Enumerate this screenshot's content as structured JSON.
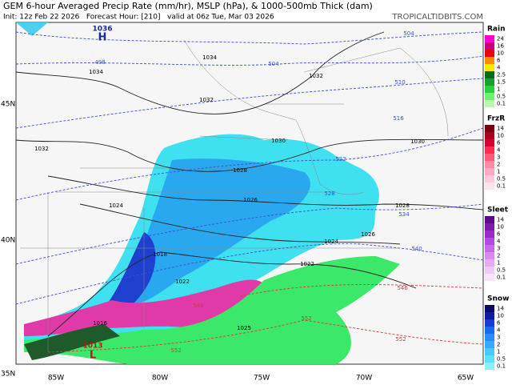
{
  "header": {
    "title": "GEM 6-hour Averaged Precip Rate (mm/hr), MSLP (hPa), & 1000-500mb Thick (dam)",
    "subtitle": "Init: 12z Feb 22 2026   Forecast Hour: [210]   valid at 06z Tue, Mar 03 2026",
    "credit": "TROPICALTIDBITS.COM"
  },
  "map": {
    "lat_labels": [
      "45N",
      "40N",
      "35N"
    ],
    "lon_labels": [
      "85W",
      "80W",
      "75W",
      "70W",
      "65W"
    ],
    "high": {
      "value": "1036",
      "symbol": "H"
    },
    "low": {
      "value": "1013",
      "symbol": "L"
    },
    "pressure_labels": [
      "1034",
      "1034",
      "1032",
      "1032",
      "1032",
      "1030",
      "1030",
      "1028",
      "1028",
      "1026",
      "1026",
      "1024",
      "1024",
      "1022",
      "1022",
      "1018",
      "1016",
      "1025"
    ],
    "thickness_labels": [
      "498",
      "504",
      "504",
      "510",
      "516",
      "522",
      "528",
      "534",
      "540",
      "546",
      "546",
      "552",
      "552",
      "552"
    ]
  },
  "legend": [
    {
      "title": "Rain",
      "ticks": [
        "24",
        "16",
        "10",
        "6",
        "4",
        "2.5",
        "1.5",
        "1",
        "0.5",
        "0.1"
      ]
    },
    {
      "title": "FrzR",
      "ticks": [
        "14",
        "10",
        "6",
        "4",
        "3",
        "2",
        "1",
        "0.5",
        "0.1"
      ]
    },
    {
      "title": "Sleet",
      "ticks": [
        "14",
        "10",
        "6",
        "4",
        "3",
        "2",
        "1",
        "0.5",
        "0.1"
      ]
    },
    {
      "title": "Snow",
      "ticks": [
        "14",
        "10",
        "6",
        "4",
        "3",
        "2",
        "1",
        "0.5",
        "0.1"
      ]
    }
  ]
}
